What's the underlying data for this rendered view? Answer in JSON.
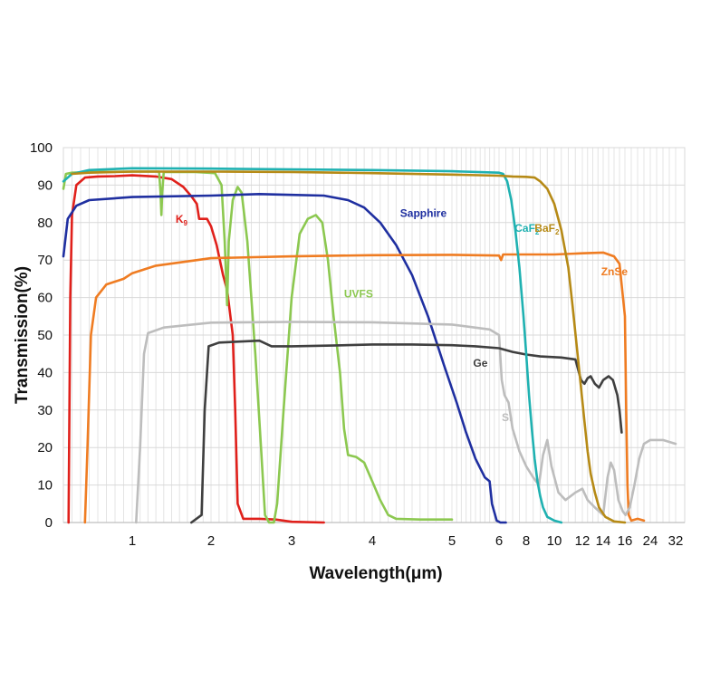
{
  "chart_data": {
    "type": "line",
    "xlabel": "Wavelength(μm)",
    "ylabel": "Transmission(%)",
    "ylim": [
      0,
      100
    ],
    "yticks": [
      0,
      10,
      20,
      30,
      40,
      50,
      60,
      70,
      80,
      90,
      100
    ],
    "xscale": "piecewise (linear 0.2–6 μm, compressed 6–16 μm, compressed 16–32 μm)",
    "xticks": [
      "1",
      "2",
      "3",
      "4",
      "5",
      "6",
      "8",
      "10",
      "12",
      "14",
      "16",
      "24",
      "32"
    ],
    "grid": true,
    "series": [
      {
        "name": "K9",
        "color": "#e0201b",
        "label_at": [
          1.55,
          80
        ],
        "points": [
          [
            0.26,
            0
          ],
          [
            0.28,
            60
          ],
          [
            0.3,
            82
          ],
          [
            0.35,
            90
          ],
          [
            0.45,
            92
          ],
          [
            0.6,
            92.3
          ],
          [
            0.8,
            92.4
          ],
          [
            1.0,
            92.6
          ],
          [
            1.3,
            92.3
          ],
          [
            1.5,
            91.6
          ],
          [
            1.65,
            89.5
          ],
          [
            1.75,
            87
          ],
          [
            1.82,
            85
          ],
          [
            1.85,
            81
          ],
          [
            1.95,
            81
          ],
          [
            2.0,
            79
          ],
          [
            2.07,
            74
          ],
          [
            2.15,
            66
          ],
          [
            2.2,
            62
          ],
          [
            2.27,
            50
          ],
          [
            2.3,
            30
          ],
          [
            2.33,
            5
          ],
          [
            2.4,
            1
          ],
          [
            2.6,
            1
          ],
          [
            2.8,
            0.8
          ],
          [
            3.0,
            0.2
          ],
          [
            3.4,
            0
          ]
        ]
      },
      {
        "name": "UVFS",
        "color": "#8cc850",
        "label_at": [
          3.65,
          60
        ],
        "points": [
          [
            0.2,
            89
          ],
          [
            0.23,
            93
          ],
          [
            0.3,
            93.3
          ],
          [
            0.6,
            93.5
          ],
          [
            1.0,
            93.6
          ],
          [
            1.34,
            93.6
          ],
          [
            1.36,
            88
          ],
          [
            1.37,
            82
          ],
          [
            1.38,
            88
          ],
          [
            1.4,
            93.5
          ],
          [
            1.8,
            93.5
          ],
          [
            2.05,
            93.2
          ],
          [
            2.13,
            90
          ],
          [
            2.17,
            75
          ],
          [
            2.2,
            58
          ],
          [
            2.22,
            75
          ],
          [
            2.27,
            86
          ],
          [
            2.33,
            89.5
          ],
          [
            2.38,
            88
          ],
          [
            2.45,
            75
          ],
          [
            2.55,
            45
          ],
          [
            2.62,
            20
          ],
          [
            2.67,
            2
          ],
          [
            2.72,
            0
          ],
          [
            2.78,
            0
          ],
          [
            2.82,
            5
          ],
          [
            2.9,
            30
          ],
          [
            3.0,
            60
          ],
          [
            3.1,
            77
          ],
          [
            3.2,
            81
          ],
          [
            3.3,
            82
          ],
          [
            3.38,
            80
          ],
          [
            3.45,
            70
          ],
          [
            3.52,
            55
          ],
          [
            3.6,
            40
          ],
          [
            3.65,
            25
          ],
          [
            3.7,
            18
          ],
          [
            3.8,
            17.5
          ],
          [
            3.9,
            16
          ],
          [
            4.0,
            11
          ],
          [
            4.1,
            6
          ],
          [
            4.2,
            2
          ],
          [
            4.3,
            1
          ],
          [
            4.6,
            0.8
          ],
          [
            5.0,
            0.8
          ]
        ]
      },
      {
        "name": "Sapphire",
        "color": "#1f2fa0",
        "label_at": [
          4.35,
          81.5
        ],
        "points": [
          [
            0.2,
            71
          ],
          [
            0.25,
            81
          ],
          [
            0.35,
            84.5
          ],
          [
            0.5,
            86
          ],
          [
            1.0,
            86.8
          ],
          [
            2.0,
            87.2
          ],
          [
            2.6,
            87.6
          ],
          [
            3.0,
            87.4
          ],
          [
            3.4,
            87.2
          ],
          [
            3.7,
            86
          ],
          [
            3.9,
            84
          ],
          [
            4.1,
            80
          ],
          [
            4.3,
            74
          ],
          [
            4.5,
            66
          ],
          [
            4.7,
            55
          ],
          [
            4.9,
            42
          ],
          [
            5.1,
            32
          ],
          [
            5.3,
            24
          ],
          [
            5.5,
            17
          ],
          [
            5.7,
            12
          ],
          [
            5.8,
            11
          ],
          [
            5.85,
            5
          ],
          [
            5.95,
            0.5
          ],
          [
            6.1,
            0
          ],
          [
            6.5,
            0
          ]
        ]
      },
      {
        "name": "ZnSe",
        "color": "#ef7c22",
        "label_at": [
          13.8,
          66
        ],
        "points": [
          [
            0.45,
            0
          ],
          [
            0.48,
            20
          ],
          [
            0.52,
            50
          ],
          [
            0.58,
            60
          ],
          [
            0.7,
            63.5
          ],
          [
            0.9,
            65
          ],
          [
            1.0,
            66.5
          ],
          [
            1.3,
            68.5
          ],
          [
            2.0,
            70.5
          ],
          [
            3.0,
            71
          ],
          [
            4.0,
            71.3
          ],
          [
            5.0,
            71.4
          ],
          [
            6.0,
            71.2
          ],
          [
            6.15,
            70
          ],
          [
            6.3,
            71.5
          ],
          [
            8.0,
            71.5
          ],
          [
            10.0,
            71.5
          ],
          [
            12.0,
            71.8
          ],
          [
            14.0,
            72
          ],
          [
            15.0,
            71
          ],
          [
            15.5,
            69
          ],
          [
            16.0,
            55
          ],
          [
            16.4,
            30
          ],
          [
            16.8,
            10
          ],
          [
            17.2,
            2
          ],
          [
            18,
            0.5
          ],
          [
            20,
            1
          ],
          [
            22,
            0.5
          ]
        ]
      },
      {
        "name": "Si",
        "color": "#bdbdbd",
        "label_at": [
          6.2,
          27
        ],
        "points": [
          [
            1.05,
            0
          ],
          [
            1.1,
            20
          ],
          [
            1.15,
            45
          ],
          [
            1.2,
            50.5
          ],
          [
            1.4,
            52
          ],
          [
            2.0,
            53.3
          ],
          [
            3.0,
            53.5
          ],
          [
            4.0,
            53.4
          ],
          [
            5.0,
            52.8
          ],
          [
            5.8,
            51.5
          ],
          [
            6.0,
            50
          ],
          [
            6.2,
            38
          ],
          [
            6.4,
            34
          ],
          [
            6.7,
            32
          ],
          [
            7.0,
            25
          ],
          [
            7.5,
            19
          ],
          [
            8.0,
            15
          ],
          [
            8.5,
            12
          ],
          [
            8.9,
            10
          ],
          [
            9.2,
            18
          ],
          [
            9.5,
            22
          ],
          [
            9.8,
            15
          ],
          [
            10.3,
            8
          ],
          [
            10.8,
            6
          ],
          [
            11.5,
            8
          ],
          [
            12.0,
            9
          ],
          [
            12.5,
            6
          ],
          [
            13.2,
            4
          ],
          [
            14.0,
            2
          ],
          [
            14.4,
            12
          ],
          [
            14.7,
            16
          ],
          [
            15.0,
            14
          ],
          [
            15.4,
            6
          ],
          [
            15.8,
            3
          ],
          [
            16.2,
            2
          ],
          [
            17.5,
            4
          ],
          [
            19,
            10
          ],
          [
            20.5,
            17
          ],
          [
            22,
            21
          ],
          [
            24,
            22
          ],
          [
            28,
            22
          ],
          [
            32,
            21
          ]
        ]
      },
      {
        "name": "Ge",
        "color": "#3f3f3f",
        "label_at": [
          5.45,
          41.5
        ],
        "points": [
          [
            1.75,
            0
          ],
          [
            1.88,
            2
          ],
          [
            1.92,
            30
          ],
          [
            1.97,
            47
          ],
          [
            2.1,
            48
          ],
          [
            2.6,
            48.5
          ],
          [
            2.75,
            47
          ],
          [
            3.0,
            47
          ],
          [
            3.5,
            47.2
          ],
          [
            4.0,
            47.5
          ],
          [
            4.5,
            47.5
          ],
          [
            5.0,
            47.3
          ],
          [
            5.5,
            47
          ],
          [
            6.0,
            46.5
          ],
          [
            7.0,
            45.5
          ],
          [
            8.0,
            44.8
          ],
          [
            9.0,
            44.3
          ],
          [
            10.5,
            44
          ],
          [
            11.5,
            43.5
          ],
          [
            11.9,
            38
          ],
          [
            12.2,
            37
          ],
          [
            12.5,
            38.5
          ],
          [
            12.8,
            39
          ],
          [
            13.2,
            37
          ],
          [
            13.6,
            36
          ],
          [
            14.0,
            38
          ],
          [
            14.5,
            39
          ],
          [
            14.9,
            38
          ],
          [
            15.3,
            34
          ],
          [
            15.5,
            30
          ],
          [
            15.6,
            27
          ],
          [
            15.7,
            24
          ]
        ]
      },
      {
        "name": "CaF2",
        "color": "#1fb1b1",
        "label_at": [
          7.15,
          77.5
        ],
        "points": [
          [
            0.2,
            91
          ],
          [
            0.3,
            93
          ],
          [
            0.5,
            94
          ],
          [
            1.0,
            94.5
          ],
          [
            2.0,
            94.4
          ],
          [
            3.0,
            94.2
          ],
          [
            4.0,
            94
          ],
          [
            5.0,
            93.7
          ],
          [
            6.0,
            93.3
          ],
          [
            6.3,
            93
          ],
          [
            6.6,
            91
          ],
          [
            6.9,
            86
          ],
          [
            7.2,
            78
          ],
          [
            7.5,
            68
          ],
          [
            7.8,
            55
          ],
          [
            8.0,
            45
          ],
          [
            8.2,
            34
          ],
          [
            8.4,
            25
          ],
          [
            8.6,
            17
          ],
          [
            8.8,
            11
          ],
          [
            9.0,
            7
          ],
          [
            9.2,
            4
          ],
          [
            9.5,
            1.5
          ],
          [
            10.0,
            0.5
          ],
          [
            10.5,
            0
          ]
        ]
      },
      {
        "name": "BaF2",
        "color": "#b68a16",
        "label_at": [
          8.6,
          77.5
        ],
        "points": [
          [
            0.3,
            93
          ],
          [
            0.5,
            93.3
          ],
          [
            1.0,
            93.6
          ],
          [
            2.0,
            93.6
          ],
          [
            3.0,
            93.5
          ],
          [
            4.0,
            93.2
          ],
          [
            5.0,
            92.8
          ],
          [
            6.0,
            92.5
          ],
          [
            7.0,
            92.3
          ],
          [
            8.0,
            92.2
          ],
          [
            8.6,
            92
          ],
          [
            9.0,
            91
          ],
          [
            9.5,
            89
          ],
          [
            10.0,
            85
          ],
          [
            10.5,
            78
          ],
          [
            11.0,
            68
          ],
          [
            11.3,
            58
          ],
          [
            11.6,
            47
          ],
          [
            11.9,
            36
          ],
          [
            12.2,
            27
          ],
          [
            12.5,
            19
          ],
          [
            12.8,
            13
          ],
          [
            13.2,
            8
          ],
          [
            13.6,
            4
          ],
          [
            14.2,
            1.5
          ],
          [
            15.0,
            0.3
          ],
          [
            16.0,
            0
          ]
        ]
      }
    ]
  }
}
